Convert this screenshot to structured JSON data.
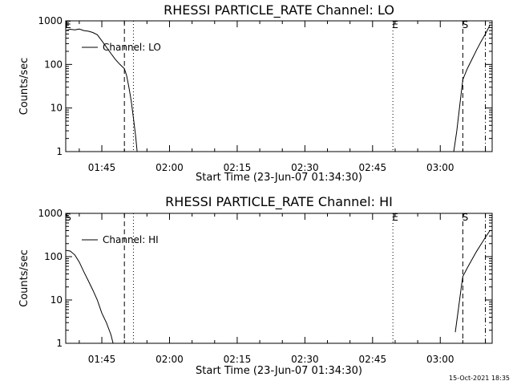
{
  "footer_timestamp": "15-Oct-2021 18:35",
  "chart_data": [
    {
      "type": "line",
      "title": "RHESSI PARTICLE_RATE Channel: LO",
      "xlabel": "Start Time (23-Jun-07 01:34:30)",
      "ylabel": "Counts/sec",
      "y_scale": "log",
      "ylim": [
        1,
        1000
      ],
      "xlim": [
        "01:37:00",
        "03:11:30"
      ],
      "x_ticks": [
        "01:45",
        "02:00",
        "02:15",
        "02:30",
        "02:45",
        "03:00"
      ],
      "y_ticks": [
        "1",
        "10",
        "100",
        "1000"
      ],
      "legend": {
        "placement": "top-left",
        "entries": [
          "Channel: LO"
        ]
      },
      "markers": [
        {
          "label": "E",
          "time": "01:37:00",
          "style": "solid"
        },
        {
          "label": "",
          "time": "01:50:00",
          "style": "dashed"
        },
        {
          "label": "",
          "time": "01:52:00",
          "style": "dotted"
        },
        {
          "label": "E",
          "time": "02:49:30",
          "style": "dotted"
        },
        {
          "label": "S",
          "time": "03:05:00",
          "style": "dashed"
        },
        {
          "label": "",
          "time": "03:10:00",
          "style": "dashdot"
        }
      ],
      "series": [
        {
          "name": "Channel: LO",
          "segments": [
            {
              "x": [
                "01:37:00",
                "01:38:00",
                "01:39:00",
                "01:40:00",
                "01:41:00",
                "01:42:00",
                "01:43:00",
                "01:44:00",
                "01:45:00",
                "01:46:00",
                "01:47:00",
                "01:48:00",
                "01:49:00",
                "01:50:00",
                "01:50:30",
                "01:51:00",
                "01:51:30",
                "01:52:00",
                "01:52:30",
                "01:52:50"
              ],
              "y": [
                600,
                640,
                620,
                650,
                600,
                580,
                540,
                480,
                350,
                250,
                180,
                130,
                100,
                80,
                55,
                30,
                15,
                6,
                2.2,
                1
              ]
            },
            {
              "x": [
                "03:03:00",
                "03:03:40",
                "03:04:20",
                "03:05:00",
                "03:06:00",
                "03:07:00",
                "03:08:00",
                "03:09:00",
                "03:10:00",
                "03:11:00"
              ],
              "y": [
                1,
                3,
                12,
                45,
                80,
                130,
                210,
                330,
                500,
                800
              ]
            }
          ]
        }
      ]
    },
    {
      "type": "line",
      "title": "RHESSI PARTICLE_RATE Channel: HI",
      "xlabel": "Start Time (23-Jun-07 01:34:30)",
      "ylabel": "Counts/sec",
      "y_scale": "log",
      "ylim": [
        1,
        1000
      ],
      "xlim": [
        "01:37:00",
        "03:11:30"
      ],
      "x_ticks": [
        "01:45",
        "02:00",
        "02:15",
        "02:30",
        "02:45",
        "03:00"
      ],
      "y_ticks": [
        "1",
        "10",
        "100",
        "1000"
      ],
      "legend": {
        "placement": "top-left",
        "entries": [
          "Channel: HI"
        ]
      },
      "markers": [
        {
          "label": "S",
          "time": "01:37:00",
          "style": "solid"
        },
        {
          "label": "",
          "time": "01:50:00",
          "style": "dashed"
        },
        {
          "label": "",
          "time": "01:52:00",
          "style": "dotted"
        },
        {
          "label": "E",
          "time": "02:49:30",
          "style": "dotted"
        },
        {
          "label": "S",
          "time": "03:05:00",
          "style": "dashed"
        },
        {
          "label": "",
          "time": "03:10:00",
          "style": "dashdot"
        }
      ],
      "series": [
        {
          "name": "Channel: HI",
          "segments": [
            {
              "x": [
                "01:37:00",
                "01:38:00",
                "01:39:00",
                "01:40:00",
                "01:41:00",
                "01:42:00",
                "01:43:00",
                "01:44:00",
                "01:45:00",
                "01:46:00",
                "01:47:00",
                "01:47:30"
              ],
              "y": [
                140,
                135,
                110,
                75,
                45,
                28,
                17,
                10,
                5,
                3,
                1.6,
                1
              ]
            },
            {
              "x": [
                "03:03:20",
                "03:04:00",
                "03:04:40",
                "03:05:00",
                "03:06:00",
                "03:07:00",
                "03:08:00",
                "03:09:00",
                "03:10:00",
                "03:11:00"
              ],
              "y": [
                1.8,
                6,
                20,
                35,
                55,
                85,
                130,
                190,
                280,
                400
              ]
            }
          ]
        }
      ]
    }
  ]
}
